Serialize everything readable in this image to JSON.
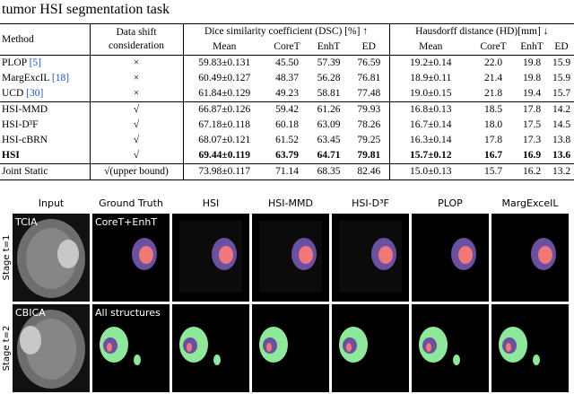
{
  "header": {
    "title": "tumor HSI segmentation task"
  },
  "table": {
    "columns": [
      "Method",
      "Data shift consideration"
    ],
    "groups": [
      "Dice similarity coefficient (DSC) [%] ↑",
      "Hausdorff distance (HD)[mm] ↓"
    ],
    "subcolumns": [
      "Mean",
      "CoreT",
      "EnhT",
      "ED",
      "Mean",
      "CoreT",
      "EnhT",
      "ED"
    ],
    "rows": [
      {
        "method": "PLOP",
        "cite": "[5]",
        "shift": "×",
        "cells": [
          "59.83±0.131",
          "45.50",
          "57.39",
          "76.59",
          "19.2±0.14",
          "22.0",
          "19.8",
          "15.9"
        ]
      },
      {
        "method": "MargExcIL",
        "cite": "[18]",
        "shift": "×",
        "cells": [
          "60.49±0.127",
          "48.37",
          "56.28",
          "76.81",
          "18.9±0.11",
          "21.4",
          "19.8",
          "15.9"
        ]
      },
      {
        "method": "UCD",
        "cite": "[30]",
        "shift": "×",
        "cells": [
          "61.84±0.129",
          "49.23",
          "58.81",
          "77.48",
          "19.0±0.15",
          "21.8",
          "19.4",
          "15.7"
        ]
      },
      {
        "method": "HSI-MMD",
        "shift": "√",
        "cells": [
          "66.87±0.126",
          "59.42",
          "61.26",
          "79.93",
          "16.8±0.13",
          "18.5",
          "17.8",
          "14.2"
        ]
      },
      {
        "method": "HSI-D³F",
        "shift": "√",
        "cells": [
          "67.18±0.118",
          "60.18",
          "63.09",
          "78.26",
          "16.7±0.14",
          "18.0",
          "17.5",
          "14.5"
        ]
      },
      {
        "method": "HSI-cBRN",
        "shift": "√",
        "cells": [
          "68.07±0.121",
          "61.52",
          "63.45",
          "79.25",
          "16.3±0.14",
          "17.8",
          "17.3",
          "13.8"
        ]
      },
      {
        "method": "HSI",
        "shift": "√",
        "bold": true,
        "cells": [
          "69.44±0.119",
          "63.79",
          "64.71",
          "79.81",
          "15.7±0.12",
          "16.7",
          "16.9",
          "13.6"
        ]
      },
      {
        "method": "Joint Static",
        "shift": "√(upper bound)",
        "cells": [
          "73.98±0.117",
          "71.14",
          "68.35",
          "82.46",
          "15.0±0.13",
          "15.7",
          "16.2",
          "13.2"
        ]
      }
    ]
  },
  "figure": {
    "columns": [
      "Input",
      "Ground Truth",
      "HSI",
      "HSI-MMD",
      "HSI-D³F",
      "PLOP",
      "MargExceIL"
    ],
    "rows": [
      {
        "stage": "Stage t=1",
        "dataset": "TCIA",
        "gt_label": "CoreT+EnhT"
      },
      {
        "stage": "Stage t=2",
        "dataset": "CBICA",
        "gt_label": "All structures"
      }
    ]
  }
}
